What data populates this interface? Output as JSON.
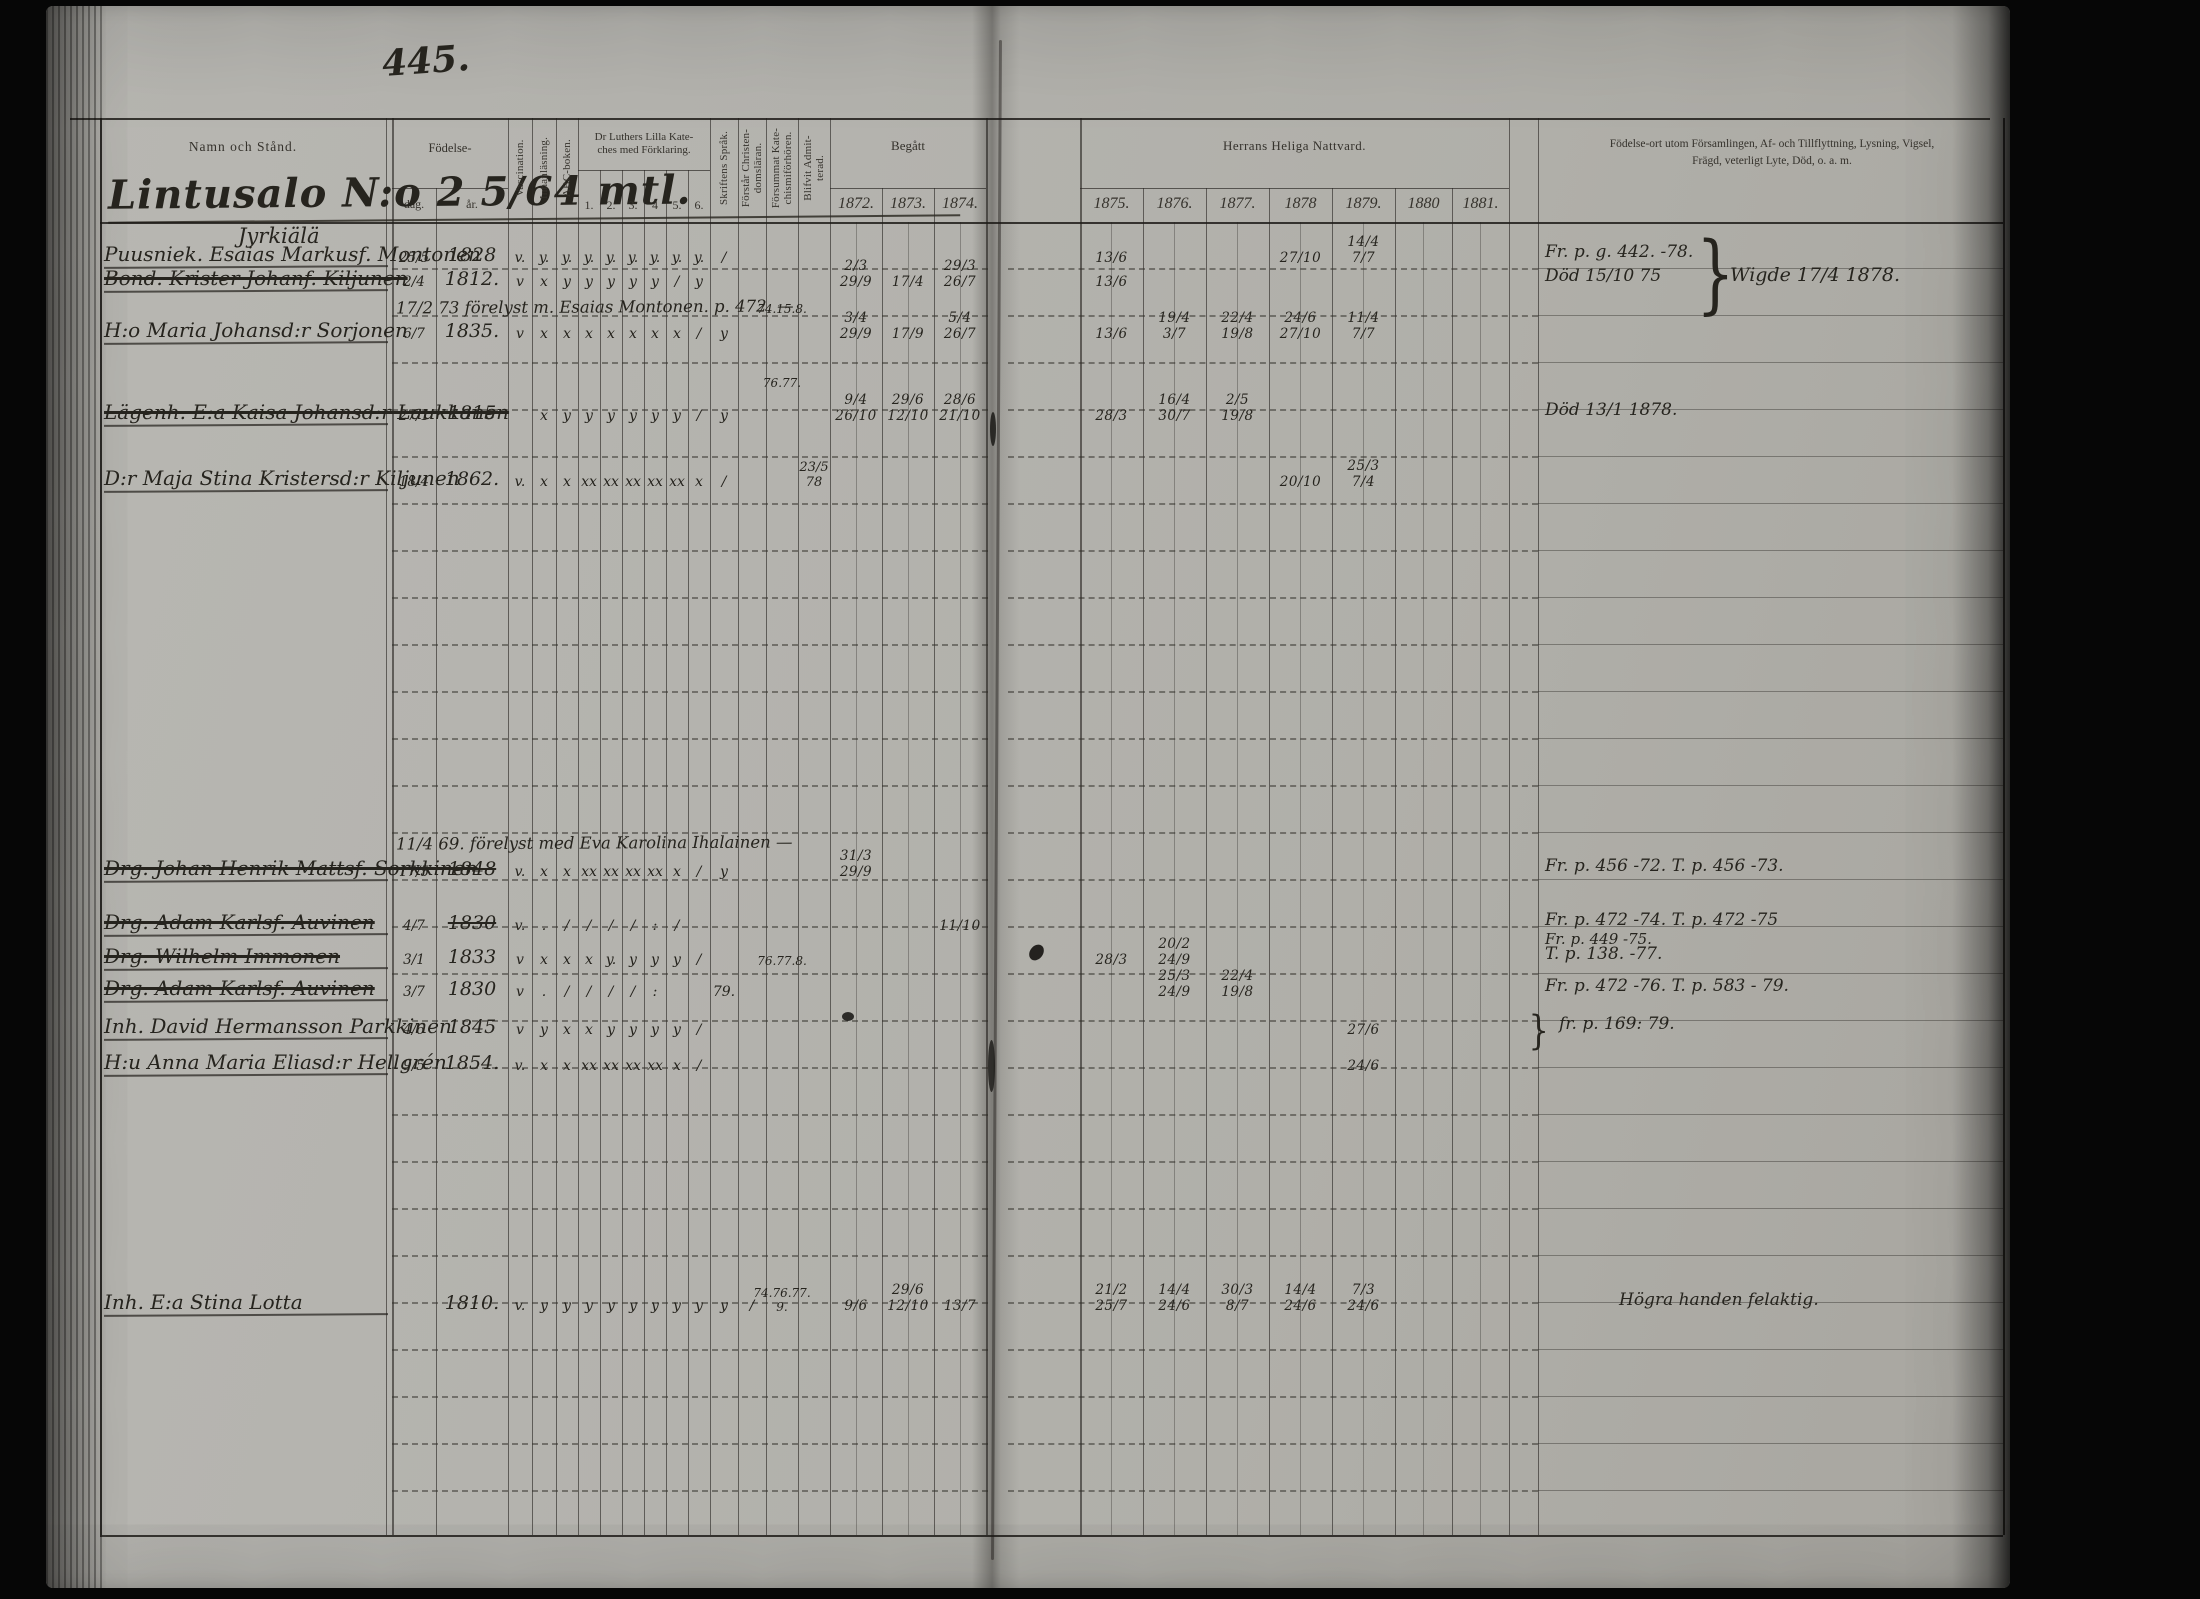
{
  "page": {
    "number": "445."
  },
  "headers": {
    "name": "Namn och Stånd.",
    "birth_group": "Födelse-",
    "birth_day": "dag.",
    "birth_year": "år.",
    "vaccination": "Vaccination.",
    "reading": "Innanläsning.",
    "abc": "ABC-boken.",
    "catechism_group": "Dr Luthers Lilla Kate-\nches med Förklaring.",
    "catechism_cols": [
      "1.",
      "2.",
      "3.",
      "4",
      "5.",
      "6."
    ],
    "scripture": "Skriftens Språk.",
    "understands": "Förstår Christen-\ndomsläran.",
    "missed": "Försummat Kate-\nchismiförhören.",
    "admitted": "Blifvit Admit-\nterad.",
    "begatt_group": "Begått",
    "begatt_years": [
      "1872.",
      "1873.",
      "1874."
    ],
    "nattvard_group": "Herrans Heliga Nattvard.",
    "nattvard_years": [
      "1875.",
      "1876.",
      "1877.",
      "1878",
      "1879.",
      "1880",
      "1881."
    ],
    "notes": "Födelse-ort utom Församlingen, Af- och Tillflyttning, Lysning, Vigsel,\nFrägd, veterligt Lyte, Död, o. a. m."
  },
  "farm": {
    "title": "Lintusalo N:o 2 5/64 mtl.",
    "subtitle": "Jyrkiälä"
  },
  "rows": [
    {
      "name": "Puusniek. Esaias Markusf. Montonen",
      "dag": "25/5",
      "ar": "1828",
      "marks": [
        "v.",
        "y.",
        "y.",
        "y.",
        "y.",
        "y.",
        "y.",
        "y.",
        "y.",
        "/"
      ],
      "y1875": "13/6",
      "y1878": "27/10",
      "y1879": "14/4 7/7",
      "note": "Fr. p. g. 442. -78."
    },
    {
      "name": "Bond. Krister Johanf. Kiljunen",
      "crossed": true,
      "dag": "2/4",
      "ar": "1812.",
      "marks": [
        "v",
        "x",
        "y",
        "y",
        "y",
        "y",
        "y",
        "/",
        "y",
        ""
      ],
      "y1872": "2/3 29/9",
      "y1873": "17/4",
      "y1874": "29/3 26/7",
      "y1875": "13/6",
      "note": "Död 15/10 75",
      "note_brace": "Wigde 17/4 1878."
    },
    {
      "inline": "17/2 73  förelyst m. Esaias Montonen. p. 472. —",
      "forsummat": "74.15.8."
    },
    {
      "name": "H:o Maria Johansd:r Sorjonen",
      "dag": "6/7",
      "ar": "1835.",
      "marks": [
        "v",
        "x",
        "x",
        "x",
        "x",
        "x",
        "x",
        "x",
        "/",
        "y"
      ],
      "y1872": "3/4 29/9",
      "y1873": "17/9",
      "y1874": "5/4 26/7",
      "y1875": "13/6",
      "y1876": "19/4 3/7",
      "y1877": "22/4 19/8",
      "y1878": "24/6 27/10",
      "y1879": "11/4 7/7"
    },
    {
      "forsummat": "76.77."
    },
    {
      "name": "Lägenh. E:a Kaisa Johansd:r Laukkanen",
      "crossed": true,
      "dag": "27/1",
      "ar": "1815",
      "marks": [
        "",
        "x",
        "y",
        "y",
        "y",
        "y",
        "y",
        "y",
        "/",
        "y"
      ],
      "y1872": "9/4 26/10",
      "y1873": "29/6 12/10",
      "y1874": "28/6 21/10",
      "y1875": "28/3",
      "y1876": "16/4 30/7",
      "y1877": "2/5 19/8",
      "note": "Död 13/1 1878."
    },
    {
      "name": "D:r Maja Stina Kristersd:r Kiljunen",
      "dag": "18/4",
      "ar": "1862.",
      "marks": [
        "v.",
        "x",
        "x",
        "xx",
        "xx",
        "xx",
        "xx",
        "xx",
        "x",
        "/"
      ],
      "blifvit": "23/5 78",
      "y1878": "20/10",
      "y1879": "25/3 7/4"
    },
    {
      "inline": "11/4 69.  förelyst med Eva Karolina Ihalainen —"
    },
    {
      "name": "Drg. Johan Henrik Mattsf. Sorkkinen",
      "crossed": true,
      "dag": "17/5",
      "ar": "1848",
      "ar_crossed": true,
      "marks": [
        "v.",
        "x",
        "x",
        "xx",
        "xx",
        "xx",
        "xx",
        "x",
        "/",
        "y"
      ],
      "y1872": "31/3 29/9",
      "note": "Fr. p. 456 -72.   T. p. 456 -73."
    },
    {
      "name": "Drg. Adam Karlsf. Auvinen",
      "crossed": true,
      "dag": "4/7",
      "ar": "1830",
      "ar_crossed": true,
      "marks": [
        "v.",
        ".",
        "/",
        "/",
        "/",
        "/",
        ":",
        "/",
        "",
        ""
      ],
      "y1874": "11/10",
      "note": "Fr. p. 472 -74.   T. p. 472 -75",
      "note2": "Fr. p. 449 -75."
    },
    {
      "name": "Drg. Wilhelm Immonen",
      "crossed": true,
      "dag": "3/1",
      "ar": "1833",
      "marks": [
        "v",
        "x",
        "x",
        "x",
        "y.",
        "y",
        "y",
        "y",
        "/",
        ""
      ],
      "forsummat": "76.77.8.",
      "y1875": "28/3",
      "y1876": "20/2 24/9",
      "note": "T. p. 138. -77."
    },
    {
      "name": "Drg. Adam Karlsf. Auvinen",
      "crossed": true,
      "dag": "3/7",
      "ar": "1830",
      "marks": [
        "v",
        ".",
        "/",
        "/",
        "/",
        "/",
        ":",
        "",
        "",
        "79."
      ],
      "y1876": "25/3 24/9",
      "y1877": "22/4 19/8",
      "note": "Fr. p. 472 -76.   T. p. 583 - 79."
    },
    {
      "name": "Inh. David Hermansson Parkkinen",
      "dag": "4/6",
      "ar": "1845",
      "marks": [
        "v",
        "y",
        "x",
        "x",
        "y",
        "y",
        "y",
        "y",
        "/",
        ""
      ],
      "y1879": "27/6",
      "note": "fr. p. 169: 79.",
      "brace": true
    },
    {
      "name": "H:u Anna Maria Eliasd:r Hellgrén",
      "dag": "9/5",
      "ar": "1854.",
      "marks": [
        "v.",
        "x",
        "x",
        "xx",
        "xx",
        "xx",
        "xx",
        "x",
        "/",
        ""
      ],
      "y1879": "24/6"
    },
    {
      "name": "Inh. E:a Stina Lotta",
      "dag": "",
      "ar": "1810.",
      "marks": [
        "v.",
        "y",
        "y",
        "y",
        "y",
        "y",
        "y",
        "y",
        "y",
        "y"
      ],
      "forstar": "/",
      "forsummat": "74.76.77.\n9.",
      "y1872": "9/6",
      "y1873": "29/6 12/10",
      "y1874": "13/7",
      "y1875": "21/2 25/7",
      "y1876": "14/4 24/6",
      "y1877": "30/3 8/7",
      "y1878": "14/4 24/6",
      "y1879": "7/3 24/6",
      "note": "Högra handen felaktig."
    }
  ]
}
